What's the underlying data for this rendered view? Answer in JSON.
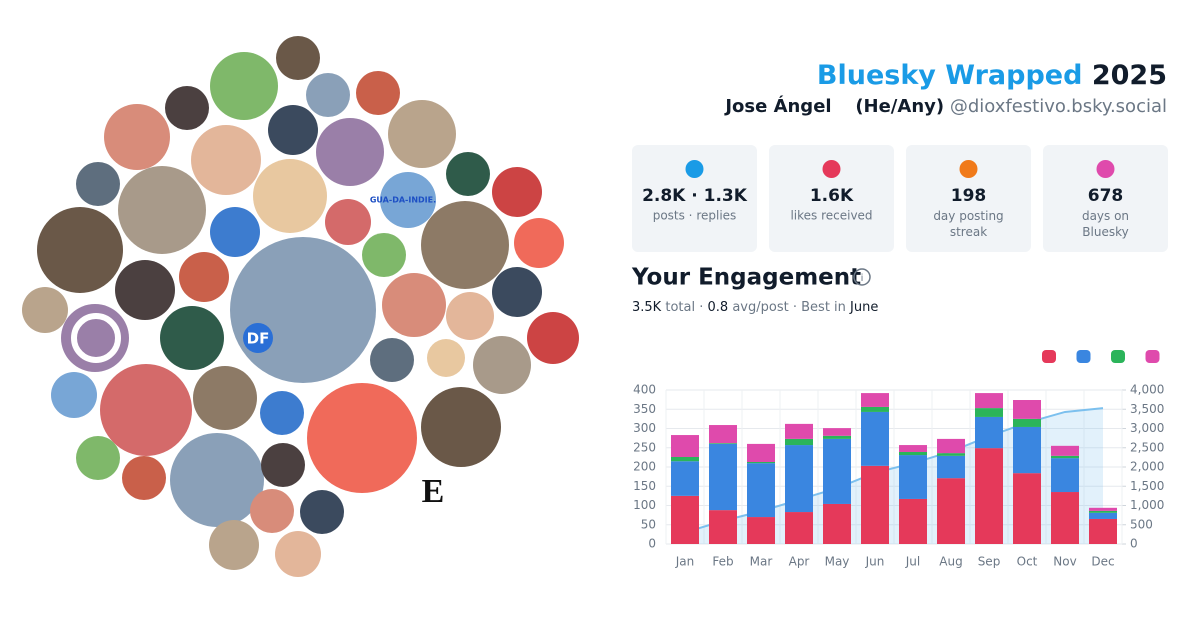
{
  "header": {
    "title": "Bluesky Wrapped",
    "year": "2025",
    "name": "Jose Ángel",
    "pronouns": "(He/Any)",
    "handle": "@dioxfestivo.bsky.social"
  },
  "stats": [
    {
      "value": "2.8K · 1.3K",
      "label": "posts · replies"
    },
    {
      "value": "1.6K",
      "label": "likes received"
    },
    {
      "value": "198",
      "label": "day posting streak"
    },
    {
      "value": "678",
      "label": "days on Bluesky"
    }
  ],
  "avatars": {
    "df": "DF",
    "e": "E",
    "guada": "GUA-DA-INDIE."
  },
  "engagement": {
    "title": "Your Engagement",
    "summary": [
      "3.5K",
      "total",
      "·",
      "0.8",
      "avg/post",
      "·",
      "Best in",
      "June"
    ]
  },
  "chart_data": {
    "type": "stacked-bar-line",
    "categories": [
      "Jan",
      "Feb",
      "Mar",
      "Apr",
      "May",
      "Jun",
      "Jul",
      "Aug",
      "Sep",
      "Oct",
      "Nov",
      "Dec"
    ],
    "series": [
      {
        "color": "#e5395a",
        "values": [
          125,
          88,
          70,
          83,
          104,
          203,
          117,
          171,
          249,
          184,
          135,
          65
        ]
      },
      {
        "color": "#3a86e0",
        "values": [
          90,
          172,
          140,
          174,
          169,
          140,
          114,
          58,
          81,
          120,
          88,
          16
        ]
      },
      {
        "color": "#2bb45a",
        "values": [
          11,
          2,
          3,
          16,
          8,
          13,
          8,
          7,
          23,
          21,
          6,
          5
        ]
      },
      {
        "color": "#df4aac",
        "values": [
          57,
          47,
          47,
          39,
          20,
          36,
          18,
          37,
          39,
          49,
          26,
          8
        ]
      },
      {
        "color": "#7cc0ee",
        "axis": "y2",
        "values": [
          300,
          600,
          850,
          1150,
          1450,
          1850,
          2100,
          2400,
          2800,
          3150,
          3430,
          3530
        ]
      }
    ],
    "ylim": [
      0,
      400
    ],
    "yticks": [
      0,
      50,
      100,
      150,
      200,
      250,
      300,
      350,
      400
    ],
    "y2lim": [
      0,
      4000
    ],
    "y2ticks": [
      0,
      500,
      {
        "value": 1000,
        "label": "1,000"
      },
      {
        "value": 1500,
        "label": "1,500"
      },
      {
        "value": 2000,
        "label": "2,000"
      },
      {
        "value": 2500,
        "label": "2,500"
      },
      {
        "value": 3000,
        "label": "3,000"
      },
      {
        "value": 3500,
        "label": "3,500"
      },
      {
        "value": 4000,
        "label": "4,000"
      }
    ],
    "grid": true
  }
}
